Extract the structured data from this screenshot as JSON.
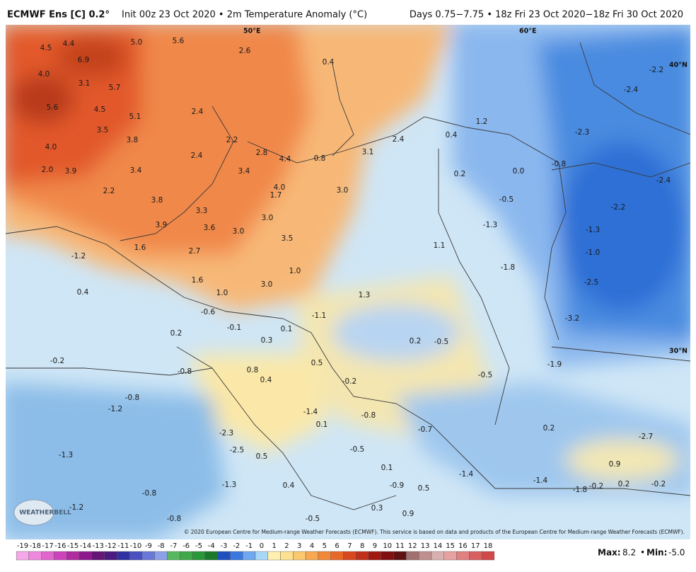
{
  "header": {
    "model": "ECMWF Ens [C] 0.2°",
    "title": "Init 00z 23 Oct 2020 • 2m Temperature Anomaly (°C)",
    "period": "Days 0.75−7.75 • 18z Fri 23 Oct 2020−18z Fri 30 Oct 2020"
  },
  "map": {
    "geo_labels": [
      "50°E",
      "60°E",
      "40°N",
      "30°N"
    ],
    "anomalies": [
      "4.5",
      "4.4",
      "6.9",
      "5.0",
      "5.6",
      "2.6",
      "0.4",
      "4.0",
      "3.1",
      "5.7",
      "5.6",
      "4.5",
      "5.1",
      "2.4",
      "3.5",
      "3.8",
      "2.2",
      "4.0",
      "2.4",
      "2.8",
      "4.4",
      "0.8",
      "3.1",
      "2.4",
      "0.4",
      "1.2",
      "-2.2",
      "-2.4",
      "-2.3",
      "2.0",
      "3.9",
      "3.4",
      "3.4",
      "0.2",
      "0.0",
      "-0.8",
      "-2.4",
      "2.2",
      "4.0",
      "1.7",
      "3.0",
      "-0.5",
      "-2.2",
      "3.8",
      "3.3",
      "3.0",
      "3.9",
      "3.6",
      "3.0",
      "-1.3",
      "-1.3",
      "3.5",
      "1.1",
      "1.6",
      "2.7",
      "-1.2",
      "-1.0",
      "1.0",
      "-1.8",
      "1.6",
      "3.0",
      "0.4",
      "1.0",
      "1.3",
      "-2.5",
      "-0.6",
      "-1.1",
      "-3.2",
      "0.2",
      "-0.1",
      "0.1",
      "0.3",
      "0.2",
      "-0.5",
      "-0.2",
      "0.8",
      "0.5",
      "-1.9",
      "-0.8",
      "0.4",
      "-0.2",
      "-0.5",
      "-0.8",
      "-1.2",
      "-1.4",
      "-0.8",
      "0.1",
      "-0.7",
      "0.2",
      "-2.7",
      "-2.3",
      "-2.5",
      "-0.5",
      "0.5",
      "-1.3",
      "0.1",
      "0.9",
      "-1.4",
      "-1.4",
      "-1.3",
      "-0.8",
      "0.4",
      "-0.9",
      "0.5",
      "-0.2",
      "0.2",
      "-0.2",
      "-1.8",
      "-1.2",
      "-0.8",
      "-0.5",
      "0.3",
      "0.9"
    ],
    "logo": "WEATHERBELL",
    "copyright": "© 2020 European Centre for Medium-range Weather Forecasts (ECMWF). This service is based on data and products of the European Centre for Medium-range Weather Forecasts (ECMWF)."
  },
  "colorbar": {
    "ticks": [
      -19,
      -18,
      -17,
      -16,
      -15,
      -14,
      -13,
      -12,
      -11,
      -10,
      -9,
      -8,
      -7,
      -6,
      -5,
      -4,
      -3,
      -2,
      -1,
      0,
      1,
      2,
      3,
      4,
      5,
      6,
      7,
      8,
      9,
      10,
      11,
      12,
      13,
      14,
      15,
      16,
      17,
      18
    ],
    "colors": [
      "#f5a8e8",
      "#ee88dd",
      "#e066cc",
      "#cc44bb",
      "#b02aa0",
      "#8c1a8c",
      "#661477",
      "#4a1a80",
      "#3030a0",
      "#4a50c0",
      "#6a78d8",
      "#8aa0e8",
      "#58b860",
      "#40a848",
      "#289838",
      "#1a7a2a",
      "#2050c0",
      "#3a78e0",
      "#70a8f0",
      "#a8d8f8",
      "#fff0b0",
      "#fde090",
      "#fbc870",
      "#f8a850",
      "#f08838",
      "#e86828",
      "#d84820",
      "#c03018",
      "#a01810",
      "#801010",
      "#601010",
      "#a07070",
      "#c09090",
      "#d8b0b0",
      "#e8a0a0",
      "#e08080",
      "#d86060",
      "#d04848"
    ]
  },
  "footer": {
    "max_label": "Max:",
    "max": "8.2",
    "min_label": "Min:",
    "min": "-5.0"
  }
}
